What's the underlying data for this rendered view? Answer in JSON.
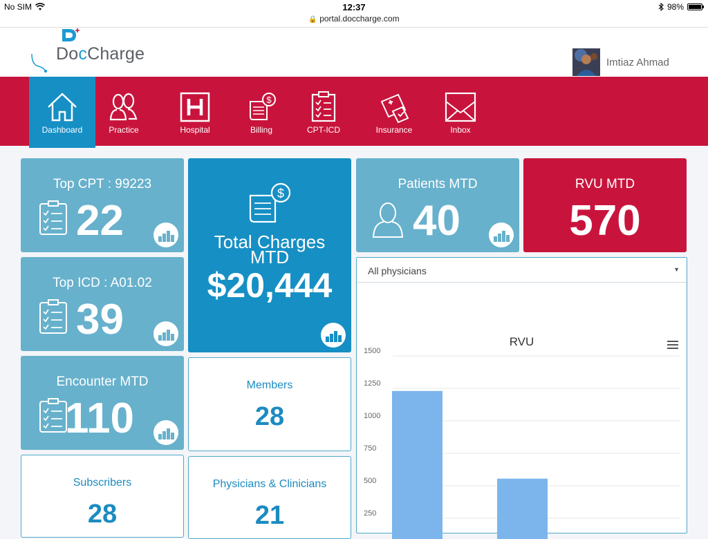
{
  "status_bar": {
    "carrier": "No SIM",
    "time": "12:37",
    "url": "portal.doccharge.com",
    "battery": "98%",
    "battery_level": 0.98
  },
  "header": {
    "logo_text_a": "Do",
    "logo_text_c": "c",
    "logo_text_b": "Charge",
    "user_name": "Imtiaz Ahmad"
  },
  "nav": [
    {
      "label": "Dashboard",
      "icon": "home-icon",
      "active": true
    },
    {
      "label": "Practice",
      "icon": "users-icon",
      "active": false
    },
    {
      "label": "Hospital",
      "icon": "hospital-icon",
      "active": false
    },
    {
      "label": "Billing",
      "icon": "billing-icon",
      "active": false
    },
    {
      "label": "CPT-ICD",
      "icon": "clipboard-icon",
      "active": false
    },
    {
      "label": "Insurance",
      "icon": "insurance-icon",
      "active": false
    },
    {
      "label": "Inbox",
      "icon": "envelope-icon",
      "active": false
    }
  ],
  "tiles": {
    "top_cpt": {
      "title": "Top CPT : 99223",
      "value": "22"
    },
    "top_icd": {
      "title": "Top ICD : A01.02",
      "value": "39"
    },
    "encounter": {
      "title": "Encounter MTD",
      "value": "110"
    },
    "total_charges": {
      "title": "Total Charges MTD",
      "value": "$20,444"
    },
    "patients": {
      "title": "Patients MTD",
      "value": "40"
    },
    "rvu": {
      "title": "RVU MTD",
      "value": "570"
    },
    "members": {
      "title": "Members",
      "value": "28"
    },
    "subscribers": {
      "title": "Subscribers",
      "value": "28"
    },
    "physicians": {
      "title": "Physicians & Clinicians",
      "value": "21"
    }
  },
  "chart_panel": {
    "filter_value": "All physicians"
  },
  "chart_data": {
    "type": "bar",
    "title": "RVU",
    "ylim": [
      0,
      1500
    ],
    "yticks": [
      "1500",
      "1250",
      "1000",
      "750",
      "500",
      "250"
    ],
    "values": [
      1230,
      555
    ],
    "color": "#7cb5ec"
  },
  "colors": {
    "brand_red": "#c8143c",
    "brand_blue": "#168fc4",
    "tile_light": "#67b1cc"
  }
}
